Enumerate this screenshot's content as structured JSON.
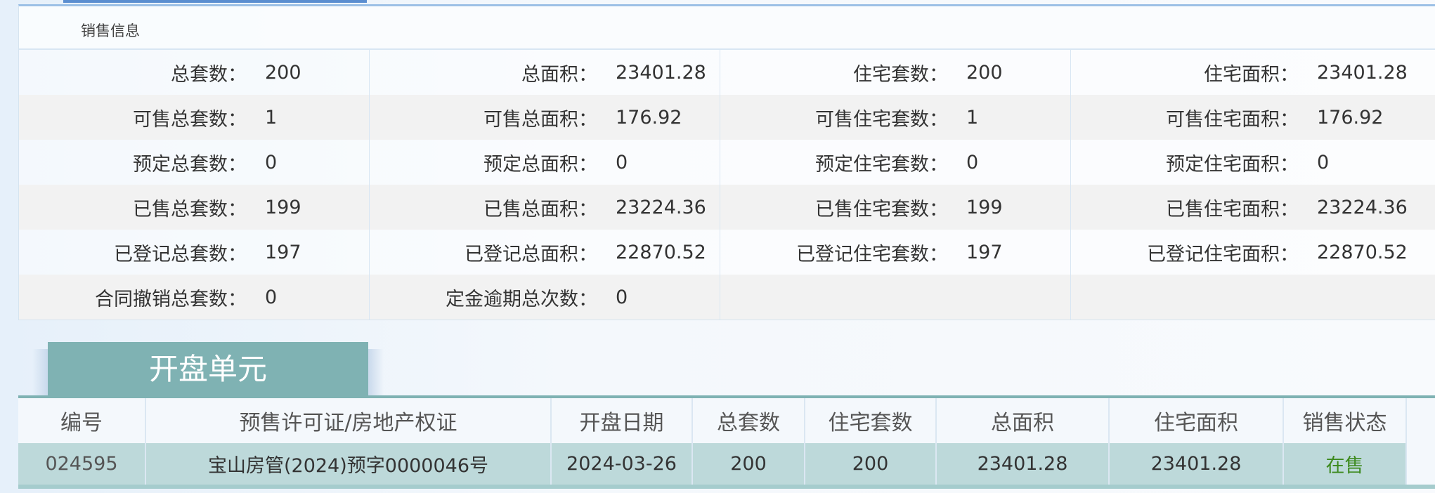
{
  "sales_info": {
    "title": "销售信息",
    "rows": [
      [
        {
          "label": "总套数：",
          "value": "200"
        },
        {
          "label": "总面积：",
          "value": "23401.28"
        },
        {
          "label": "住宅套数：",
          "value": "200"
        },
        {
          "label": "住宅面积：",
          "value": "23401.28"
        }
      ],
      [
        {
          "label": "可售总套数：",
          "value": "1"
        },
        {
          "label": "可售总面积：",
          "value": "176.92"
        },
        {
          "label": "可售住宅套数：",
          "value": "1"
        },
        {
          "label": "可售住宅面积：",
          "value": "176.92"
        }
      ],
      [
        {
          "label": "预定总套数：",
          "value": "0"
        },
        {
          "label": "预定总面积：",
          "value": "0"
        },
        {
          "label": "预定住宅套数：",
          "value": "0"
        },
        {
          "label": "预定住宅面积：",
          "value": "0"
        }
      ],
      [
        {
          "label": "已售总套数：",
          "value": "199"
        },
        {
          "label": "已售总面积：",
          "value": "23224.36"
        },
        {
          "label": "已售住宅套数：",
          "value": "199"
        },
        {
          "label": "已售住宅面积：",
          "value": "23224.36"
        }
      ],
      [
        {
          "label": "已登记总套数：",
          "value": "197"
        },
        {
          "label": "已登记总面积：",
          "value": "22870.52"
        },
        {
          "label": "已登记住宅套数：",
          "value": "197"
        },
        {
          "label": "已登记住宅面积：",
          "value": "22870.52"
        }
      ],
      [
        {
          "label": "合同撤销总套数：",
          "value": "0"
        },
        {
          "label": "定金逾期总次数：",
          "value": "0"
        },
        {
          "label": "",
          "value": ""
        },
        {
          "label": "",
          "value": ""
        }
      ]
    ]
  },
  "units": {
    "tab_label": "开盘单元",
    "headers": [
      "编号",
      "预售许可证/房地产权证",
      "开盘日期",
      "总套数",
      "住宅套数",
      "总面积",
      "住宅面积",
      "销售状态"
    ],
    "rows": [
      [
        "024595",
        "宝山房管(2024)预字0000046号",
        "2024-03-26",
        "200",
        "200",
        "23401.28",
        "23401.28",
        "在售"
      ]
    ]
  },
  "colors": {
    "tab": "#7fb2b3",
    "row": "#bdd9da",
    "status": "#3d8a1e",
    "accent": "#5b8ed0"
  }
}
